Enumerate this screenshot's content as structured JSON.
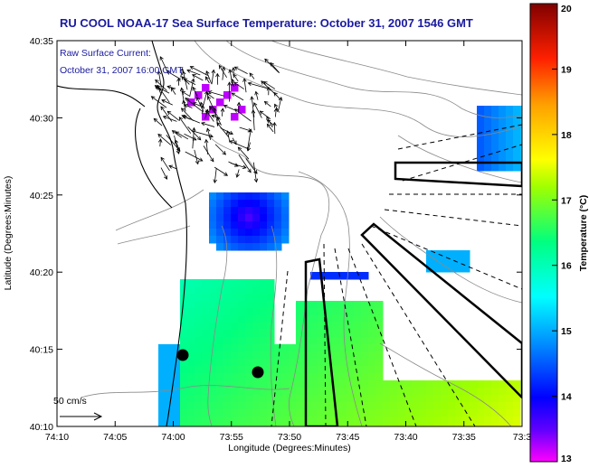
{
  "chart_data": {
    "type": "heatmap",
    "title": "RU COOL  NOAA-17  Sea Surface Temperature:  October 31, 2007 1546 GMT",
    "annotation_line1": "Raw Surface Current:",
    "annotation_line2": "October 31, 2007 16:00 GMT",
    "xlabel": "Longitude (Degrees:Minutes)",
    "ylabel": "Latitude (Degrees:Minutes)",
    "colorbar_label": "Temperature (°C)",
    "x_ticks": [
      "74:10",
      "74:05",
      "74:00",
      "73:55",
      "73:50",
      "73:45",
      "73:40",
      "73:35",
      "73:3"
    ],
    "y_ticks": [
      "40:10",
      "40:15",
      "40:20",
      "40:25",
      "40:30",
      "40:35"
    ],
    "colorbar_ticks": [
      "13",
      "14",
      "15",
      "16",
      "17",
      "18",
      "19",
      "20"
    ],
    "colorbar_range": [
      13,
      20
    ],
    "x_range_deg_min": [
      "74:10",
      "73:30"
    ],
    "y_range_deg_min": [
      "40:10",
      "40:35"
    ],
    "scale_arrow_label": "50 cm/s",
    "colormap": [
      "#ff00ff",
      "#0000ff",
      "#00ffff",
      "#00ff00",
      "#ffff00",
      "#ff8000",
      "#ff0000",
      "#800000"
    ]
  },
  "sst_field": {
    "note_values": "representative temperature samples (°C) read from the image",
    "southern_shelf_values": [
      14.8,
      15.2,
      15.6,
      16.0,
      16.4,
      16.8,
      17.0,
      17.2
    ],
    "northern_patch_values": [
      13.2,
      13.6,
      14.0,
      14.5,
      15.0
    ]
  },
  "colors": {
    "title_text": "#1a1aa0",
    "annotation_text": "#1a1aa0",
    "contours": "#808080",
    "coastline": "#000000",
    "outline": "#000000"
  }
}
